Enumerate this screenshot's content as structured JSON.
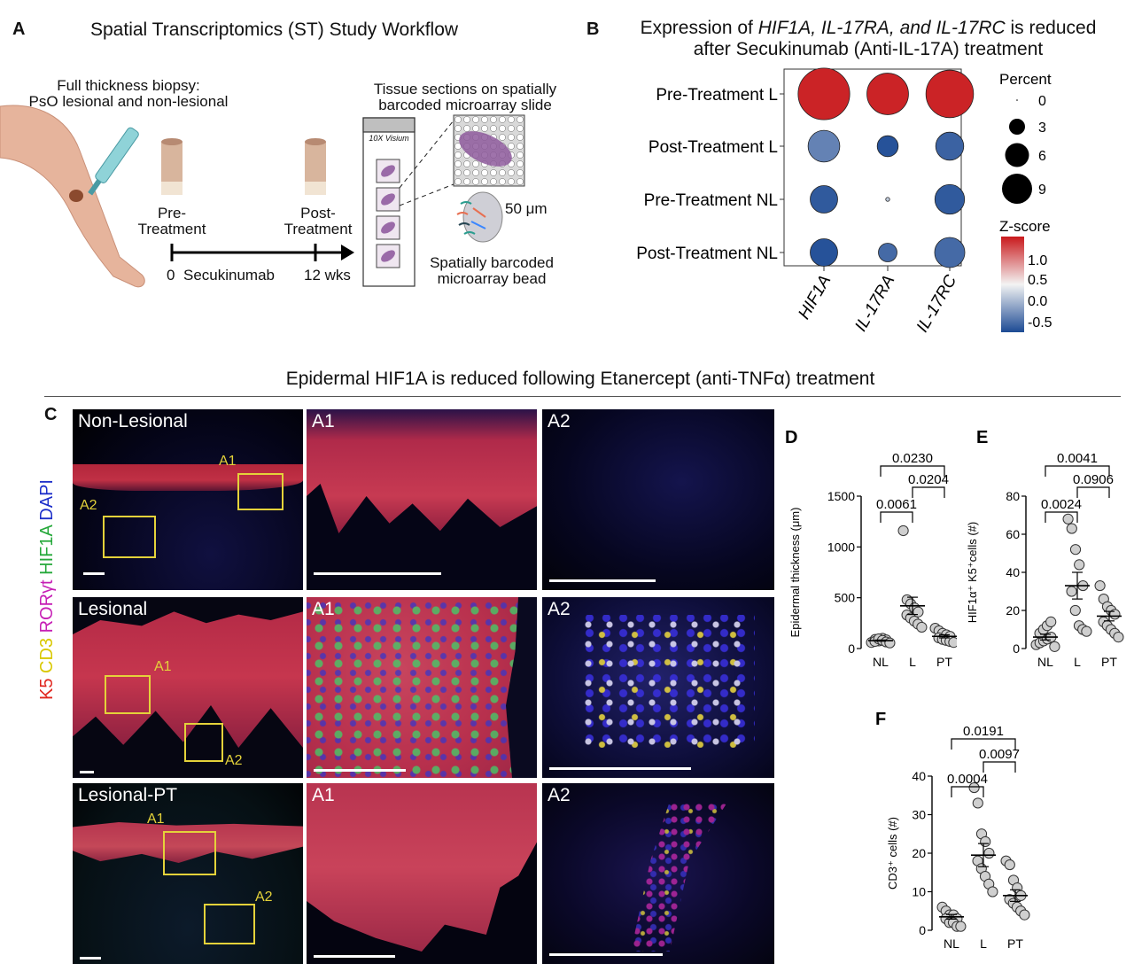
{
  "panelA": {
    "label": "A",
    "title": "Spatial Transcriptomics (ST) Study Workflow",
    "biopsy_line1": "Full thickness biopsy:",
    "biopsy_line2": "PsO lesional and non-lesional",
    "pre_line1": "Pre-",
    "pre_line2": "Treatment",
    "post_line1": "Post-",
    "post_line2": "Treatment",
    "tl_start": "0",
    "tl_drug": "Secukinumab",
    "tl_end": "12 wks",
    "slide_title": "10X Visium",
    "tissue_line1": "Tissue sections on spatially",
    "tissue_line2": "barcoded microarray slide",
    "bead_size": "50 μm",
    "bead_line1": "Spatially barcoded",
    "bead_line2": "microarray bead"
  },
  "panelB": {
    "label": "B",
    "title_pre": "Expression of ",
    "title_genes": "HIF1A, IL-17RA, and IL-17RC",
    "title_post": " is reduced",
    "title_line2": "after Secukinumab (Anti-IL-17A)  treatment",
    "size_legend_title": "Percent",
    "size_legend": [
      "0",
      "3",
      "6",
      "9"
    ],
    "color_legend_title": "Z-score",
    "color_ticks": [
      "1.0",
      "0.5",
      "0.0",
      "-0.5"
    ],
    "colors": {
      "high": "#c9191c",
      "mid": "#f3f3f3",
      "low": "#1c4a94"
    }
  },
  "sectionTitle": "Epidermal HIF1A is reduced following Etanercept (anti-TNFα) treatment",
  "panelC": {
    "label": "C",
    "stain_k5": "K5",
    "stain_cd3": "CD3",
    "stain_rorgt": "RORγt",
    "stain_hif1a": "HIF1A",
    "stain_dapi": "DAPI",
    "rows": [
      {
        "name": "Non-Lesional",
        "a1": "A1",
        "a2": "A2"
      },
      {
        "name": "Lesional",
        "a1": "A1",
        "a2": "A2"
      },
      {
        "name": "Lesional-PT",
        "a1": "A1",
        "a2": "A2"
      }
    ]
  },
  "chart_data": [
    {
      "type": "dot-heatmap",
      "panel": "B",
      "rows": [
        "Pre-Treatment L",
        "Post-Treatment L",
        "Pre-Treatment NL",
        "Post-Treatment NL"
      ],
      "columns": [
        "HIF1A",
        "IL-17RA",
        "IL-17RC"
      ],
      "size_legend_label": "Percent",
      "color_legend_label": "Z-score",
      "percent": [
        [
          8.5,
          5.5,
          7.2
        ],
        [
          3.2,
          1.4,
          2.5
        ],
        [
          2.4,
          0.05,
          2.8
        ],
        [
          2.4,
          1.1,
          2.9
        ]
      ],
      "zscore": [
        [
          1.35,
          1.35,
          1.35
        ],
        [
          -0.35,
          -0.65,
          -0.55
        ],
        [
          -0.6,
          0.1,
          -0.6
        ],
        [
          -0.65,
          -0.5,
          -0.5
        ]
      ],
      "zrange": [
        -0.7,
        1.4
      ]
    },
    {
      "type": "scatter",
      "panel": "D",
      "label": "D",
      "ylabel": "Epidermal thickness (μm)",
      "categories": [
        "NL",
        "L",
        "PT"
      ],
      "yticks": [
        "0",
        "500",
        "1000",
        "1500"
      ],
      "ylim": [
        0,
        1500
      ],
      "points": [
        [
          60,
          90,
          75,
          100,
          85,
          70,
          95,
          80,
          65,
          55
        ],
        [
          1160,
          480,
          440,
          400,
          360,
          330,
          300,
          270,
          240,
          210
        ],
        [
          200,
          175,
          150,
          135,
          120,
          105,
          90,
          80,
          70,
          60
        ]
      ],
      "means": [
        78,
        420,
        120
      ],
      "sems": [
        6,
        85,
        15
      ],
      "comparisons": [
        [
          "NL",
          "L",
          "0.0061"
        ],
        [
          "L",
          "PT",
          "0.0204"
        ],
        [
          "NL",
          "PT",
          "0.0230"
        ]
      ]
    },
    {
      "type": "scatter",
      "panel": "E",
      "label": "E",
      "ylabel": "HIF1α⁺ K5⁺cells (#)",
      "categories": [
        "NL",
        "L",
        "PT"
      ],
      "yticks": [
        "0",
        "20",
        "40",
        "60",
        "80"
      ],
      "ylim": [
        0,
        80
      ],
      "points": [
        [
          2,
          3,
          4,
          5,
          6,
          8,
          10,
          12,
          14,
          1
        ],
        [
          68,
          63,
          52,
          44,
          33,
          30,
          20,
          12,
          10,
          9
        ],
        [
          33,
          26,
          22,
          20,
          18,
          14,
          12,
          10,
          8,
          6
        ]
      ],
      "means": [
        6,
        33,
        17
      ],
      "sems": [
        1.5,
        7,
        2.5
      ],
      "comparisons": [
        [
          "NL",
          "L",
          "0.0024"
        ],
        [
          "L",
          "PT",
          "0.0906"
        ],
        [
          "NL",
          "PT",
          "0.0041"
        ]
      ]
    },
    {
      "type": "scatter",
      "panel": "F",
      "label": "F",
      "ylabel": "CD3⁺ cells (#)",
      "categories": [
        "NL",
        "L",
        "PT"
      ],
      "yticks": [
        "0",
        "10",
        "20",
        "30",
        "40"
      ],
      "ylim": [
        0,
        40
      ],
      "points": [
        [
          6,
          5,
          4,
          4,
          3,
          3,
          2,
          2,
          1,
          1
        ],
        [
          37,
          33,
          25,
          23,
          20,
          18,
          16,
          14,
          12,
          10
        ],
        [
          18,
          17,
          13,
          11,
          9,
          8,
          7,
          6,
          5,
          4
        ]
      ],
      "means": [
        3.5,
        19.5,
        9
      ],
      "sems": [
        0.6,
        3,
        1.5
      ],
      "comparisons": [
        [
          "NL",
          "L",
          "0.0004"
        ],
        [
          "L",
          "PT",
          "0.0097"
        ],
        [
          "NL",
          "PT",
          "0.0191"
        ]
      ]
    }
  ]
}
